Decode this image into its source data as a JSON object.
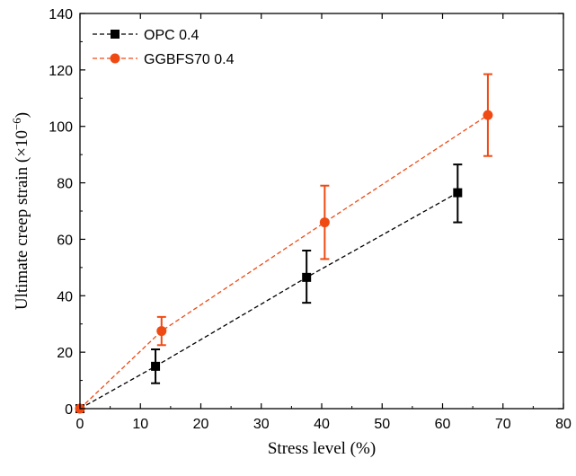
{
  "chart_data": {
    "type": "scatter",
    "xlabel": "Stress level (%)",
    "ylabel": {
      "main": "Ultimate creep strain (×10",
      "superscript": "−6",
      "close": ")"
    },
    "xlim": [
      0,
      80
    ],
    "ylim": [
      0,
      140
    ],
    "x_ticks": [
      0,
      10,
      20,
      30,
      40,
      50,
      60,
      70,
      80
    ],
    "y_ticks": [
      0,
      20,
      40,
      60,
      80,
      100,
      120,
      140
    ],
    "grid": false,
    "legend_position": "top-left",
    "series": [
      {
        "name": "OPC 0.4",
        "color": "#000000",
        "marker": "square",
        "line_style": "dashed",
        "points": [
          {
            "x": 0,
            "y": 0
          },
          {
            "x": 12.5,
            "y": 15,
            "err_low": 9,
            "err_high": 21
          },
          {
            "x": 37.5,
            "y": 46.5,
            "err_low": 37.5,
            "err_high": 56
          },
          {
            "x": 62.5,
            "y": 76.5,
            "err_low": 66,
            "err_high": 86.5
          }
        ]
      },
      {
        "name": "GGBFS70 0.4",
        "color": "#f04a14",
        "marker": "circle",
        "line_style": "dashed",
        "points": [
          {
            "x": 0,
            "y": 0
          },
          {
            "x": 13.5,
            "y": 27.5,
            "err_low": 22.5,
            "err_high": 32.5
          },
          {
            "x": 40.5,
            "y": 66,
            "err_low": 53,
            "err_high": 79
          },
          {
            "x": 67.5,
            "y": 104,
            "err_low": 89.5,
            "err_high": 118.5
          }
        ]
      }
    ]
  }
}
